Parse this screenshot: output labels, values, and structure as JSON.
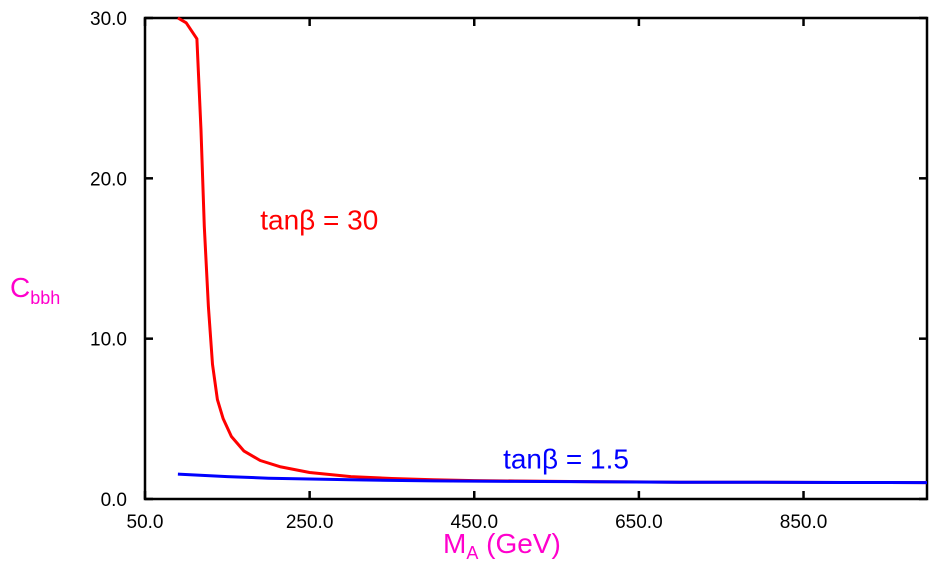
{
  "chart_data": {
    "type": "line",
    "title": "",
    "xlabel": "M",
    "xlabel_sub": "A",
    "xlabel_unit": " (GeV)",
    "ylabel": "C",
    "ylabel_sub": "bbh",
    "xlim": [
      50,
      1000
    ],
    "ylim": [
      0,
      30
    ],
    "x_ticks": [
      50,
      250,
      450,
      650,
      850
    ],
    "x_tick_labels": [
      "50.0",
      "250.0",
      "450.0",
      "650.0",
      "850.0"
    ],
    "y_ticks": [
      0,
      10,
      20,
      30
    ],
    "y_tick_labels": [
      "0.0",
      "10.0",
      "20.0",
      "30.0"
    ],
    "grid": false,
    "colors": {
      "axis_titles": "#ff00cc"
    },
    "series": [
      {
        "name": "tanβ = 30",
        "color": "#ff0000",
        "points": [
          [
            90,
            30.0
          ],
          [
            100,
            29.7
          ],
          [
            113,
            28.7
          ],
          [
            118,
            23
          ],
          [
            122,
            17
          ],
          [
            127,
            12
          ],
          [
            132,
            8.4
          ],
          [
            138,
            6.2
          ],
          [
            145,
            5.0
          ],
          [
            155,
            3.9
          ],
          [
            170,
            3.0
          ],
          [
            190,
            2.4
          ],
          [
            215,
            2.0
          ],
          [
            250,
            1.65
          ],
          [
            300,
            1.4
          ],
          [
            350,
            1.28
          ],
          [
            400,
            1.2
          ],
          [
            450,
            1.15
          ],
          [
            500,
            1.12
          ],
          [
            600,
            1.08
          ],
          [
            700,
            1.05
          ],
          [
            800,
            1.04
          ],
          [
            900,
            1.03
          ],
          [
            1000,
            1.02
          ]
        ]
      },
      {
        "name": "tanβ = 1.5",
        "color": "#0000ff",
        "points": [
          [
            90,
            1.55
          ],
          [
            150,
            1.4
          ],
          [
            200,
            1.3
          ],
          [
            250,
            1.25
          ],
          [
            300,
            1.2
          ],
          [
            400,
            1.13
          ],
          [
            500,
            1.1
          ],
          [
            600,
            1.07
          ],
          [
            700,
            1.05
          ],
          [
            800,
            1.04
          ],
          [
            900,
            1.03
          ],
          [
            1000,
            1.02
          ]
        ]
      }
    ],
    "annotations": [
      {
        "text": "tanβ = 30",
        "color": "#ff0000",
        "x": 190,
        "y": 16.8
      },
      {
        "text": "tanβ = 1.5",
        "color": "#0000ff",
        "x": 485,
        "y": 1.9
      }
    ]
  }
}
